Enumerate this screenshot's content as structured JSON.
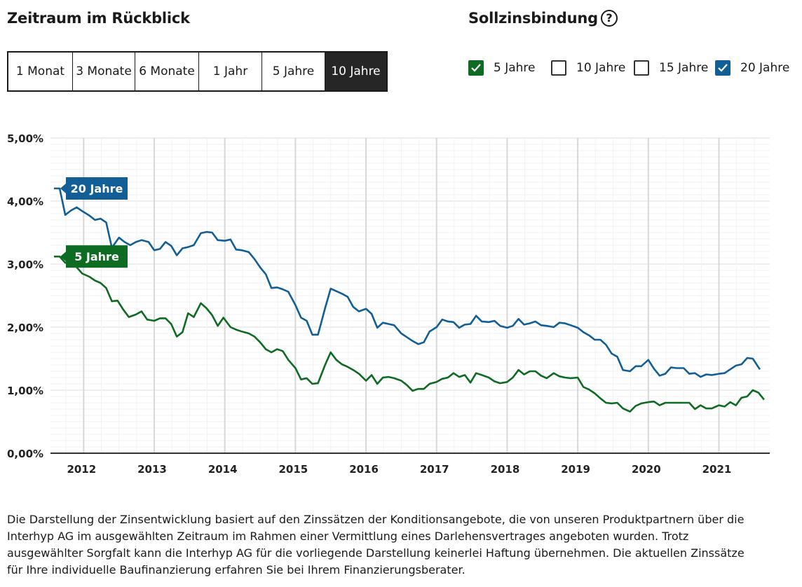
{
  "period": {
    "title": "Zeitraum im Rückblick",
    "options": [
      "1 Monat",
      "3 Monate",
      "6 Monate",
      "1 Jahr",
      "5 Jahre",
      "10 Jahre"
    ],
    "selected": "10 Jahre"
  },
  "term": {
    "title": "Sollzinsbindung",
    "help_icon": "?",
    "options": [
      {
        "label": "5 Jahre",
        "checked": true,
        "color": "#0e6b22"
      },
      {
        "label": "10 Jahre",
        "checked": false,
        "color": "#333333"
      },
      {
        "label": "15 Jahre",
        "checked": false,
        "color": "#333333"
      },
      {
        "label": "20 Jahre",
        "checked": true,
        "color": "#125e96"
      }
    ]
  },
  "disclaimer": [
    "Die Darstellung der Zinsentwicklung basiert auf den Zinssätzen der Konditionsangebote, die von unseren Produktpartnern über die",
    "Interhyp AG im ausgewählten Zeitraum im Rahmen einer Vermittlung eines Darlehensvertrages angeboten wurden. Trotz",
    "ausgewählter Sorgfalt kann die Interhyp AG für die vorliegende Darstellung keinerlei Haftung übernehmen. Die aktuellen Zinssätze",
    "für Ihre individuelle Baufinanzierung erfahren Sie bei Ihrem Finanzierungsberater."
  ],
  "chart_data": {
    "type": "line",
    "title": "",
    "xlabel": "",
    "ylabel": "",
    "x_ticks": [
      "2012",
      "2013",
      "2014",
      "2015",
      "2016",
      "2017",
      "2018",
      "2019",
      "2020",
      "2021"
    ],
    "y_ticks": [
      "0,00%",
      "1,00%",
      "2,00%",
      "3,00%",
      "4,00%",
      "5,00%"
    ],
    "xlim": [
      2011.53,
      2021.72
    ],
    "ylim": [
      0,
      5
    ],
    "grid": true,
    "series": [
      {
        "name": "20 Jahre",
        "color": "#125e96",
        "label_bg": "#125e96",
        "points": [
          [
            2011.58,
            4.2
          ],
          [
            2011.66,
            4.2
          ],
          [
            2011.74,
            3.78
          ],
          [
            2011.82,
            3.85
          ],
          [
            2011.9,
            3.9
          ],
          [
            2011.98,
            3.84
          ],
          [
            2012.08,
            3.77
          ],
          [
            2012.16,
            3.7
          ],
          [
            2012.24,
            3.72
          ],
          [
            2012.32,
            3.66
          ],
          [
            2012.4,
            3.26
          ],
          [
            2012.5,
            3.42
          ],
          [
            2012.58,
            3.35
          ],
          [
            2012.66,
            3.3
          ],
          [
            2012.74,
            3.35
          ],
          [
            2012.82,
            3.38
          ],
          [
            2012.92,
            3.35
          ],
          [
            2013.0,
            3.22
          ],
          [
            2013.08,
            3.24
          ],
          [
            2013.16,
            3.35
          ],
          [
            2013.24,
            3.29
          ],
          [
            2013.32,
            3.14
          ],
          [
            2013.4,
            3.25
          ],
          [
            2013.48,
            3.27
          ],
          [
            2013.56,
            3.3
          ],
          [
            2013.66,
            3.49
          ],
          [
            2013.74,
            3.51
          ],
          [
            2013.82,
            3.5
          ],
          [
            2013.9,
            3.38
          ],
          [
            2014.0,
            3.37
          ],
          [
            2014.08,
            3.39
          ],
          [
            2014.16,
            3.23
          ],
          [
            2014.24,
            3.22
          ],
          [
            2014.34,
            3.19
          ],
          [
            2014.42,
            3.08
          ],
          [
            2014.5,
            2.95
          ],
          [
            2014.58,
            2.84
          ],
          [
            2014.66,
            2.62
          ],
          [
            2014.74,
            2.63
          ],
          [
            2014.82,
            2.6
          ],
          [
            2014.9,
            2.56
          ],
          [
            2015.0,
            2.35
          ],
          [
            2015.08,
            2.15
          ],
          [
            2015.16,
            2.1
          ],
          [
            2015.24,
            1.88
          ],
          [
            2015.32,
            1.88
          ],
          [
            2015.42,
            2.3
          ],
          [
            2015.5,
            2.61
          ],
          [
            2015.58,
            2.57
          ],
          [
            2015.66,
            2.53
          ],
          [
            2015.74,
            2.48
          ],
          [
            2015.82,
            2.32
          ],
          [
            2015.9,
            2.25
          ],
          [
            2016.0,
            2.29
          ],
          [
            2016.08,
            2.21
          ],
          [
            2016.16,
            1.99
          ],
          [
            2016.24,
            2.07
          ],
          [
            2016.32,
            2.05
          ],
          [
            2016.4,
            2.03
          ],
          [
            2016.5,
            1.9
          ],
          [
            2016.58,
            1.84
          ],
          [
            2016.66,
            1.78
          ],
          [
            2016.74,
            1.73
          ],
          [
            2016.82,
            1.76
          ],
          [
            2016.9,
            1.93
          ],
          [
            2017.0,
            2.0
          ],
          [
            2017.08,
            2.12
          ],
          [
            2017.16,
            2.09
          ],
          [
            2017.24,
            2.08
          ],
          [
            2017.32,
            1.99
          ],
          [
            2017.4,
            2.04
          ],
          [
            2017.48,
            2.05
          ],
          [
            2017.56,
            2.18
          ],
          [
            2017.64,
            2.09
          ],
          [
            2017.74,
            2.08
          ],
          [
            2017.82,
            2.1
          ],
          [
            2017.9,
            2.02
          ],
          [
            2018.0,
            1.99
          ],
          [
            2018.08,
            2.02
          ],
          [
            2018.16,
            2.13
          ],
          [
            2018.24,
            2.04
          ],
          [
            2018.32,
            2.06
          ],
          [
            2018.4,
            2.09
          ],
          [
            2018.48,
            2.03
          ],
          [
            2018.56,
            2.02
          ],
          [
            2018.66,
            2.0
          ],
          [
            2018.74,
            2.07
          ],
          [
            2018.82,
            2.06
          ],
          [
            2018.9,
            2.03
          ],
          [
            2019.0,
            1.99
          ],
          [
            2019.08,
            1.92
          ],
          [
            2019.16,
            1.87
          ],
          [
            2019.24,
            1.8
          ],
          [
            2019.32,
            1.8
          ],
          [
            2019.4,
            1.72
          ],
          [
            2019.48,
            1.58
          ],
          [
            2019.56,
            1.53
          ],
          [
            2019.64,
            1.32
          ],
          [
            2019.74,
            1.3
          ],
          [
            2019.82,
            1.38
          ],
          [
            2019.9,
            1.38
          ],
          [
            2020.0,
            1.48
          ],
          [
            2020.08,
            1.34
          ],
          [
            2020.16,
            1.23
          ],
          [
            2020.24,
            1.26
          ],
          [
            2020.32,
            1.36
          ],
          [
            2020.4,
            1.35
          ],
          [
            2020.5,
            1.35
          ],
          [
            2020.58,
            1.26
          ],
          [
            2020.66,
            1.27
          ],
          [
            2020.74,
            1.21
          ],
          [
            2020.82,
            1.25
          ],
          [
            2020.9,
            1.24
          ],
          [
            2021.0,
            1.26
          ],
          [
            2021.08,
            1.27
          ],
          [
            2021.16,
            1.33
          ],
          [
            2021.24,
            1.39
          ],
          [
            2021.32,
            1.41
          ],
          [
            2021.4,
            1.51
          ],
          [
            2021.48,
            1.5
          ],
          [
            2021.58,
            1.33
          ]
        ]
      },
      {
        "name": "5 Jahre",
        "color": "#0e6b22",
        "label_bg": "#0e6b22",
        "points": [
          [
            2011.58,
            3.12
          ],
          [
            2011.66,
            3.12
          ],
          [
            2011.74,
            3.02
          ],
          [
            2011.82,
            3.06
          ],
          [
            2011.9,
            2.95
          ],
          [
            2011.98,
            2.85
          ],
          [
            2012.08,
            2.8
          ],
          [
            2012.16,
            2.74
          ],
          [
            2012.24,
            2.7
          ],
          [
            2012.32,
            2.62
          ],
          [
            2012.4,
            2.41
          ],
          [
            2012.48,
            2.42
          ],
          [
            2012.56,
            2.28
          ],
          [
            2012.64,
            2.16
          ],
          [
            2012.74,
            2.2
          ],
          [
            2012.82,
            2.25
          ],
          [
            2012.9,
            2.12
          ],
          [
            2013.0,
            2.1
          ],
          [
            2013.08,
            2.14
          ],
          [
            2013.16,
            2.14
          ],
          [
            2013.24,
            2.05
          ],
          [
            2013.32,
            1.85
          ],
          [
            2013.4,
            1.92
          ],
          [
            2013.48,
            2.22
          ],
          [
            2013.56,
            2.16
          ],
          [
            2013.66,
            2.38
          ],
          [
            2013.74,
            2.3
          ],
          [
            2013.82,
            2.19
          ],
          [
            2013.9,
            2.02
          ],
          [
            2013.98,
            2.15
          ],
          [
            2014.08,
            2.0
          ],
          [
            2014.16,
            1.96
          ],
          [
            2014.24,
            1.93
          ],
          [
            2014.34,
            1.9
          ],
          [
            2014.42,
            1.85
          ],
          [
            2014.5,
            1.76
          ],
          [
            2014.58,
            1.65
          ],
          [
            2014.66,
            1.6
          ],
          [
            2014.74,
            1.65
          ],
          [
            2014.82,
            1.62
          ],
          [
            2014.9,
            1.48
          ],
          [
            2015.0,
            1.35
          ],
          [
            2015.08,
            1.17
          ],
          [
            2015.16,
            1.19
          ],
          [
            2015.24,
            1.1
          ],
          [
            2015.32,
            1.11
          ],
          [
            2015.42,
            1.4
          ],
          [
            2015.5,
            1.6
          ],
          [
            2015.58,
            1.48
          ],
          [
            2015.66,
            1.41
          ],
          [
            2015.74,
            1.37
          ],
          [
            2015.82,
            1.32
          ],
          [
            2015.9,
            1.26
          ],
          [
            2016.0,
            1.15
          ],
          [
            2016.08,
            1.24
          ],
          [
            2016.16,
            1.1
          ],
          [
            2016.24,
            1.2
          ],
          [
            2016.32,
            1.21
          ],
          [
            2016.4,
            1.19
          ],
          [
            2016.5,
            1.15
          ],
          [
            2016.58,
            1.08
          ],
          [
            2016.66,
            0.99
          ],
          [
            2016.74,
            1.02
          ],
          [
            2016.82,
            1.02
          ],
          [
            2016.9,
            1.1
          ],
          [
            2017.0,
            1.13
          ],
          [
            2017.08,
            1.18
          ],
          [
            2017.16,
            1.2
          ],
          [
            2017.24,
            1.27
          ],
          [
            2017.32,
            1.21
          ],
          [
            2017.4,
            1.24
          ],
          [
            2017.48,
            1.12
          ],
          [
            2017.56,
            1.27
          ],
          [
            2017.64,
            1.24
          ],
          [
            2017.74,
            1.2
          ],
          [
            2017.82,
            1.14
          ],
          [
            2017.9,
            1.11
          ],
          [
            2018.0,
            1.13
          ],
          [
            2018.08,
            1.2
          ],
          [
            2018.16,
            1.32
          ],
          [
            2018.24,
            1.25
          ],
          [
            2018.32,
            1.3
          ],
          [
            2018.4,
            1.3
          ],
          [
            2018.48,
            1.23
          ],
          [
            2018.56,
            1.19
          ],
          [
            2018.66,
            1.27
          ],
          [
            2018.74,
            1.22
          ],
          [
            2018.82,
            1.2
          ],
          [
            2018.9,
            1.19
          ],
          [
            2019.0,
            1.2
          ],
          [
            2019.08,
            1.05
          ],
          [
            2019.16,
            1.01
          ],
          [
            2019.24,
            0.95
          ],
          [
            2019.32,
            0.87
          ],
          [
            2019.4,
            0.8
          ],
          [
            2019.48,
            0.79
          ],
          [
            2019.56,
            0.8
          ],
          [
            2019.64,
            0.71
          ],
          [
            2019.74,
            0.66
          ],
          [
            2019.82,
            0.75
          ],
          [
            2019.9,
            0.79
          ],
          [
            2020.0,
            0.81
          ],
          [
            2020.08,
            0.82
          ],
          [
            2020.16,
            0.76
          ],
          [
            2020.24,
            0.8
          ],
          [
            2020.32,
            0.8
          ],
          [
            2020.4,
            0.8
          ],
          [
            2020.5,
            0.8
          ],
          [
            2020.58,
            0.8
          ],
          [
            2020.66,
            0.7
          ],
          [
            2020.74,
            0.76
          ],
          [
            2020.82,
            0.71
          ],
          [
            2020.9,
            0.71
          ],
          [
            2021.0,
            0.76
          ],
          [
            2021.08,
            0.74
          ],
          [
            2021.16,
            0.81
          ],
          [
            2021.24,
            0.76
          ],
          [
            2021.32,
            0.88
          ],
          [
            2021.4,
            0.9
          ],
          [
            2021.48,
            1.0
          ],
          [
            2021.56,
            0.96
          ],
          [
            2021.64,
            0.85
          ]
        ]
      }
    ]
  }
}
